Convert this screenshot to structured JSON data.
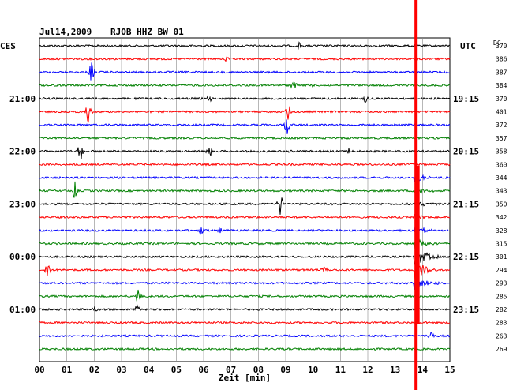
{
  "header": {
    "date": "Jul14,2009",
    "station": "RJOB HHZ BW 01",
    "left_tz": "CES",
    "right_tz": "UTC",
    "dc_label": "DC"
  },
  "chart_data": {
    "type": "line",
    "title": "Jul14,2009   RJOB HHZ BW 01",
    "xlabel": "Zeit [min]",
    "xlim": [
      0,
      15
    ],
    "x_ticks": [
      "00",
      "01",
      "02",
      "03",
      "04",
      "05",
      "06",
      "07",
      "08",
      "09",
      "10",
      "11",
      "12",
      "13",
      "14",
      "15"
    ],
    "grid": true,
    "trace_colors": [
      "#000000",
      "#ff0000",
      "#0000ff",
      "#008000"
    ],
    "left_time_labels": [
      {
        "trace": 4,
        "label": "21:00"
      },
      {
        "trace": 8,
        "label": "22:00"
      },
      {
        "trace": 12,
        "label": "23:00"
      },
      {
        "trace": 16,
        "label": "00:00"
      },
      {
        "trace": 20,
        "label": "01:00"
      }
    ],
    "right_time_labels": [
      {
        "trace": 4,
        "label": "19:15"
      },
      {
        "trace": 8,
        "label": "20:15"
      },
      {
        "trace": 12,
        "label": "21:15"
      },
      {
        "trace": 16,
        "label": "22:15"
      },
      {
        "trace": 20,
        "label": "23:15"
      }
    ],
    "dc_values": [
      "370",
      "386",
      "387",
      "384",
      "370",
      "401",
      "372",
      "357",
      "358",
      "360",
      "344",
      "343",
      "350",
      "342",
      "328",
      "315",
      "301",
      "294",
      "293",
      "285",
      "282",
      "283",
      "263",
      "269"
    ],
    "event_time_min": 13.75,
    "events": [
      {
        "trace": 0,
        "x": 9.5,
        "amp": 5
      },
      {
        "trace": 1,
        "x": 6.8,
        "amp": 3
      },
      {
        "trace": 2,
        "x": 1.9,
        "amp": 14
      },
      {
        "trace": 3,
        "x": 9.3,
        "amp": 6
      },
      {
        "trace": 3,
        "x": 9.9,
        "amp": 5
      },
      {
        "trace": 4,
        "x": 6.2,
        "amp": 4
      },
      {
        "trace": 4,
        "x": 11.9,
        "amp": 8
      },
      {
        "trace": 5,
        "x": 1.8,
        "amp": 16
      },
      {
        "trace": 5,
        "x": 9.1,
        "amp": 12
      },
      {
        "trace": 6,
        "x": 9.05,
        "amp": 14
      },
      {
        "trace": 8,
        "x": 1.5,
        "amp": 14
      },
      {
        "trace": 8,
        "x": 6.2,
        "amp": 10
      },
      {
        "trace": 8,
        "x": 9.2,
        "amp": 4
      },
      {
        "trace": 8,
        "x": 11.3,
        "amp": 4
      },
      {
        "trace": 11,
        "x": 1.3,
        "amp": 14
      },
      {
        "trace": 12,
        "x": 8.8,
        "amp": 16
      },
      {
        "trace": 14,
        "x": 5.9,
        "amp": 6
      },
      {
        "trace": 14,
        "x": 6.6,
        "amp": 4
      },
      {
        "trace": 17,
        "x": 0.3,
        "amp": 12
      },
      {
        "trace": 17,
        "x": 10.4,
        "amp": 6
      },
      {
        "trace": 19,
        "x": 3.6,
        "amp": 10
      },
      {
        "trace": 20,
        "x": 3.6,
        "amp": 10
      },
      {
        "trace": 20,
        "x": 2.0,
        "amp": 4
      },
      {
        "trace": 22,
        "x": 14.3,
        "amp": 8
      }
    ]
  }
}
